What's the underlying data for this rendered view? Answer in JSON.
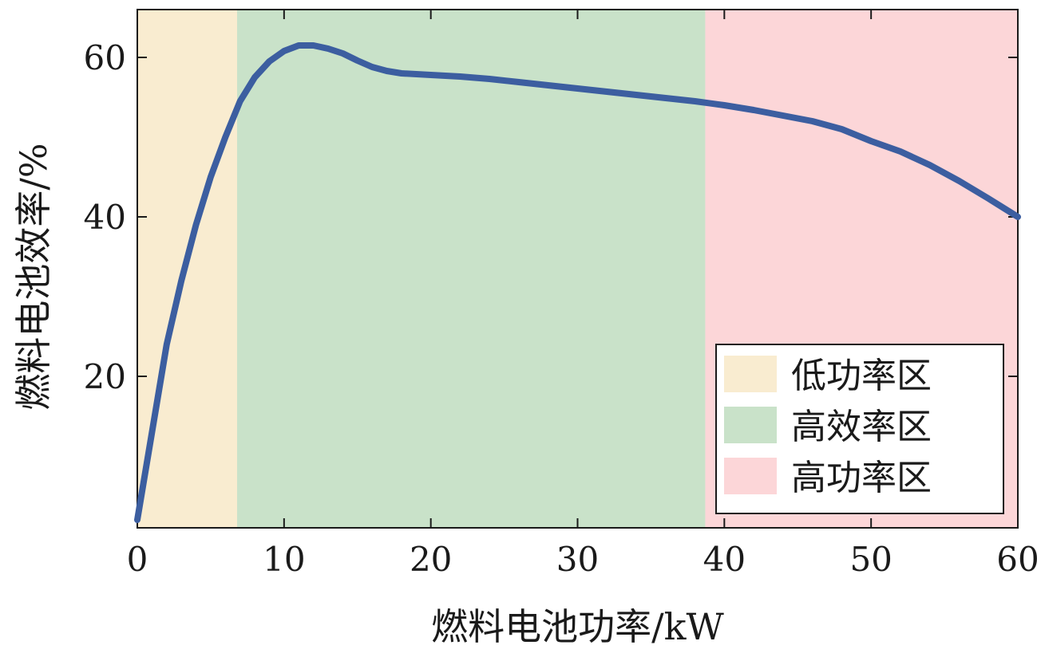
{
  "chart_data": {
    "type": "line",
    "xlabel": "燃料电池功率/kW",
    "ylabel": "燃料电池效率/%",
    "xlim": [
      0,
      60
    ],
    "ylim": [
      1,
      66
    ],
    "x_ticks": [
      "0",
      "10",
      "20",
      "30",
      "40",
      "50",
      "60"
    ],
    "y_ticks": [
      "20",
      "40",
      "60"
    ],
    "grid": false,
    "legend_position": "bottom-right",
    "regions": [
      {
        "name": "低功率区",
        "x_start": 0,
        "x_end": 6.8,
        "color": "#f9ecd0"
      },
      {
        "name": "高效率区",
        "x_start": 6.8,
        "x_end": 38.7,
        "color": "#c9e2c9"
      },
      {
        "name": "高功率区",
        "x_start": 38.7,
        "x_end": 60,
        "color": "#fcd6d8"
      }
    ],
    "series": [
      {
        "color": "#3c5ea0",
        "x": [
          0,
          1,
          2,
          3,
          4,
          5,
          6,
          7,
          8,
          9,
          10,
          11,
          12,
          13,
          14,
          15,
          16,
          17,
          18,
          20,
          22,
          24,
          26,
          28,
          30,
          32,
          34,
          36,
          38,
          40,
          42,
          44,
          46,
          48,
          50,
          52,
          54,
          56,
          58,
          60
        ],
        "y": [
          2,
          13,
          24,
          32,
          39,
          45,
          50,
          54.5,
          57.5,
          59.5,
          60.8,
          61.5,
          61.5,
          61.1,
          60.5,
          59.6,
          58.8,
          58.3,
          58,
          57.8,
          57.6,
          57.3,
          56.9,
          56.5,
          56.1,
          55.7,
          55.3,
          54.9,
          54.5,
          54,
          53.4,
          52.7,
          52,
          51,
          49.5,
          48.2,
          46.5,
          44.5,
          42.3,
          40
        ]
      }
    ]
  }
}
